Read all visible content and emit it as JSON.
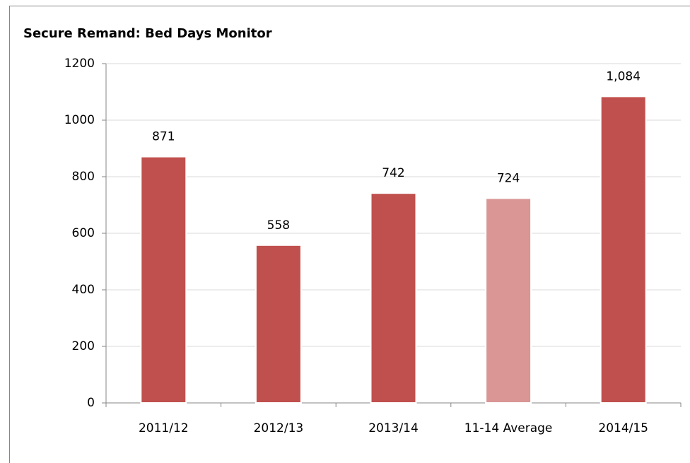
{
  "chart_data": {
    "type": "bar",
    "title": "Secure Remand: Bed Days Monitor",
    "categories": [
      "2011/12",
      "2012/13",
      "2013/14",
      "11-14 Average",
      "2014/15"
    ],
    "values": [
      871,
      558,
      742,
      724,
      1084
    ],
    "value_labels": [
      "871",
      "558",
      "742",
      "724",
      "1,084"
    ],
    "colors": [
      "#c0504d",
      "#c0504d",
      "#c0504d",
      "#d99694",
      "#c0504d"
    ],
    "ylim": [
      0,
      1200
    ],
    "yticks": [
      0,
      200,
      400,
      600,
      800,
      1000,
      1200
    ],
    "grid": true
  }
}
